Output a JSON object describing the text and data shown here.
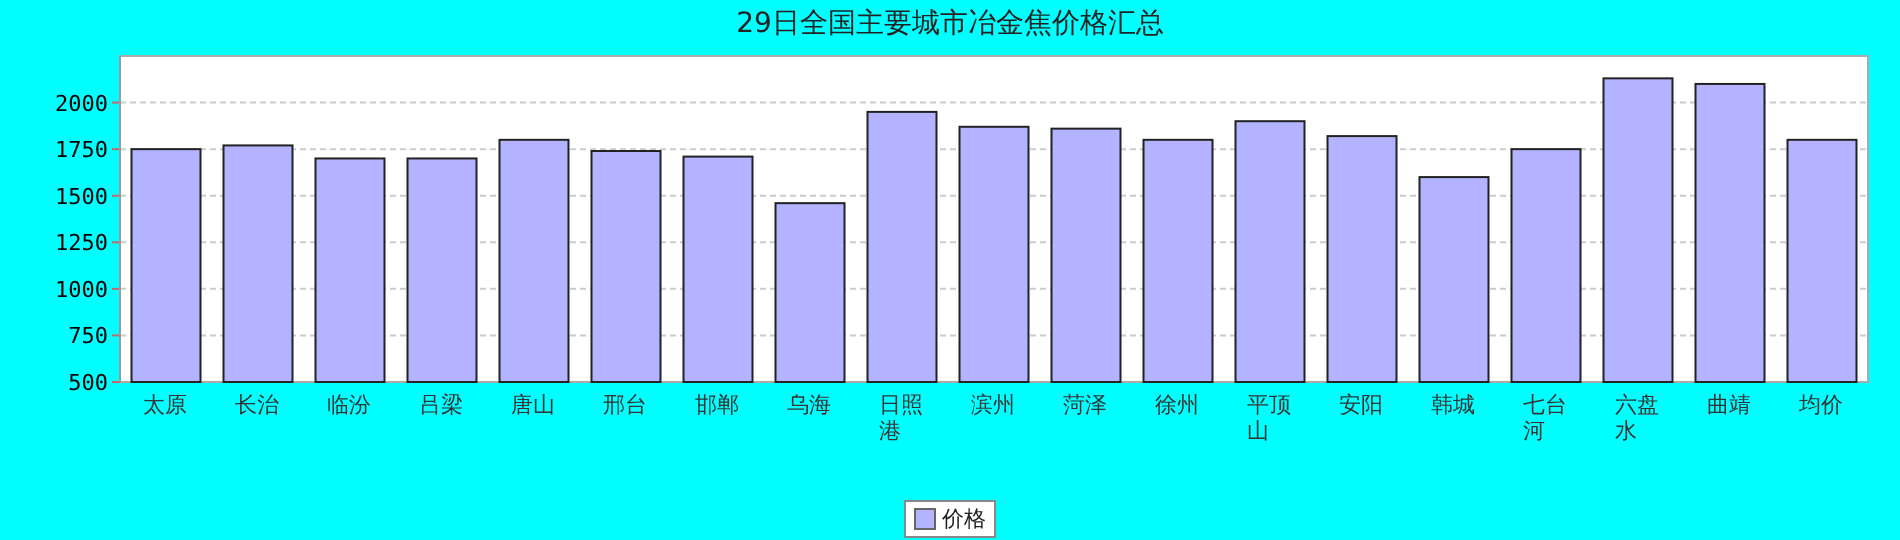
{
  "chart_data": {
    "type": "bar",
    "title": "29日全国主要城市冶金焦价格汇总",
    "categories": [
      "太原",
      "长治",
      "临汾",
      "吕梁",
      "唐山",
      "邢台",
      "邯郸",
      "乌海",
      "日照港",
      "滨州",
      "菏泽",
      "徐州",
      "平顶山",
      "安阳",
      "韩城",
      "七台河",
      "六盘水",
      "曲靖",
      "均价"
    ],
    "series": [
      {
        "name": "价格",
        "color": "#b3b3ff",
        "values": [
          1750,
          1770,
          1700,
          1700,
          1800,
          1740,
          1710,
          1460,
          1950,
          1870,
          1860,
          1800,
          1900,
          1820,
          1600,
          1750,
          2130,
          2100,
          1800
        ]
      }
    ],
    "ylim": [
      500,
      2250
    ],
    "yticks": [
      500,
      750,
      1000,
      1250,
      1500,
      1750,
      2000
    ],
    "grid": "y",
    "legend": "bottom"
  }
}
